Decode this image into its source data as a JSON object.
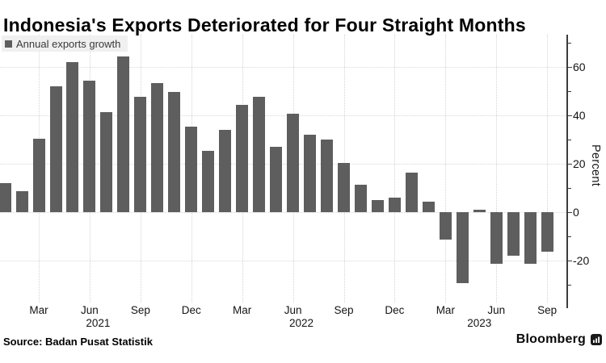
{
  "legend": {
    "label": "Annual exports growth",
    "swatch_color": "#5e5e5e"
  },
  "footer": {
    "source": "Source: Badan Pusat Statistik",
    "brand": "Bloomberg"
  },
  "chart_data": {
    "type": "bar",
    "title": "Indonesia's Exports Deteriorated for Four Straight Months",
    "xlabel": "",
    "ylabel": "Percent",
    "ylim": [
      -37.3,
      73.4
    ],
    "grid": true,
    "legend_position": "top-left",
    "axis_side": "right",
    "bar_color": "#5e5e5e",
    "categories": [
      "Jan 2021",
      "Feb 2021",
      "Mar 2021",
      "Apr 2021",
      "May 2021",
      "Jun 2021",
      "Jul 2021",
      "Aug 2021",
      "Sep 2021",
      "Oct 2021",
      "Nov 2021",
      "Dec 2021",
      "Jan 2022",
      "Feb 2022",
      "Mar 2022",
      "Apr 2022",
      "May 2022",
      "Jun 2022",
      "Jul 2022",
      "Aug 2022",
      "Sep 2022",
      "Oct 2022",
      "Nov 2022",
      "Dec 2022",
      "Jan 2023",
      "Feb 2023",
      "Mar 2023",
      "Apr 2023",
      "May 2023",
      "Jun 2023",
      "Jul 2023",
      "Aug 2023",
      "Sep 2023"
    ],
    "values": [
      12.2,
      8.6,
      30.5,
      51.9,
      62.0,
      54.5,
      41.3,
      64.3,
      47.6,
      53.4,
      49.7,
      35.3,
      25.3,
      34.1,
      44.4,
      47.8,
      27.0,
      40.7,
      32.0,
      30.2,
      20.3,
      11.4,
      5.0,
      6.1,
      16.4,
      4.5,
      -11.3,
      -29.4,
      1.0,
      -21.2,
      -18.0,
      -21.2,
      -16.2
    ],
    "x_ticks": [
      {
        "label": "Mar",
        "index": 2
      },
      {
        "label": "Jun",
        "index": 5
      },
      {
        "label": "Sep",
        "index": 8
      },
      {
        "label": "Dec",
        "index": 11
      },
      {
        "label": "Mar",
        "index": 14
      },
      {
        "label": "Jun",
        "index": 17
      },
      {
        "label": "Sep",
        "index": 20
      },
      {
        "label": "Dec",
        "index": 23
      },
      {
        "label": "Mar",
        "index": 26
      },
      {
        "label": "Jun",
        "index": 29
      },
      {
        "label": "Sep",
        "index": 32
      }
    ],
    "year_ticks": [
      {
        "label": "2021",
        "index": 5.5
      },
      {
        "label": "2022",
        "index": 17.5
      },
      {
        "label": "2023",
        "index": 28
      }
    ],
    "y_ticks_major": [
      60,
      40,
      20,
      0,
      -20
    ],
    "y_ticks_minor": [
      70,
      50,
      30,
      10,
      -10,
      -30
    ]
  }
}
